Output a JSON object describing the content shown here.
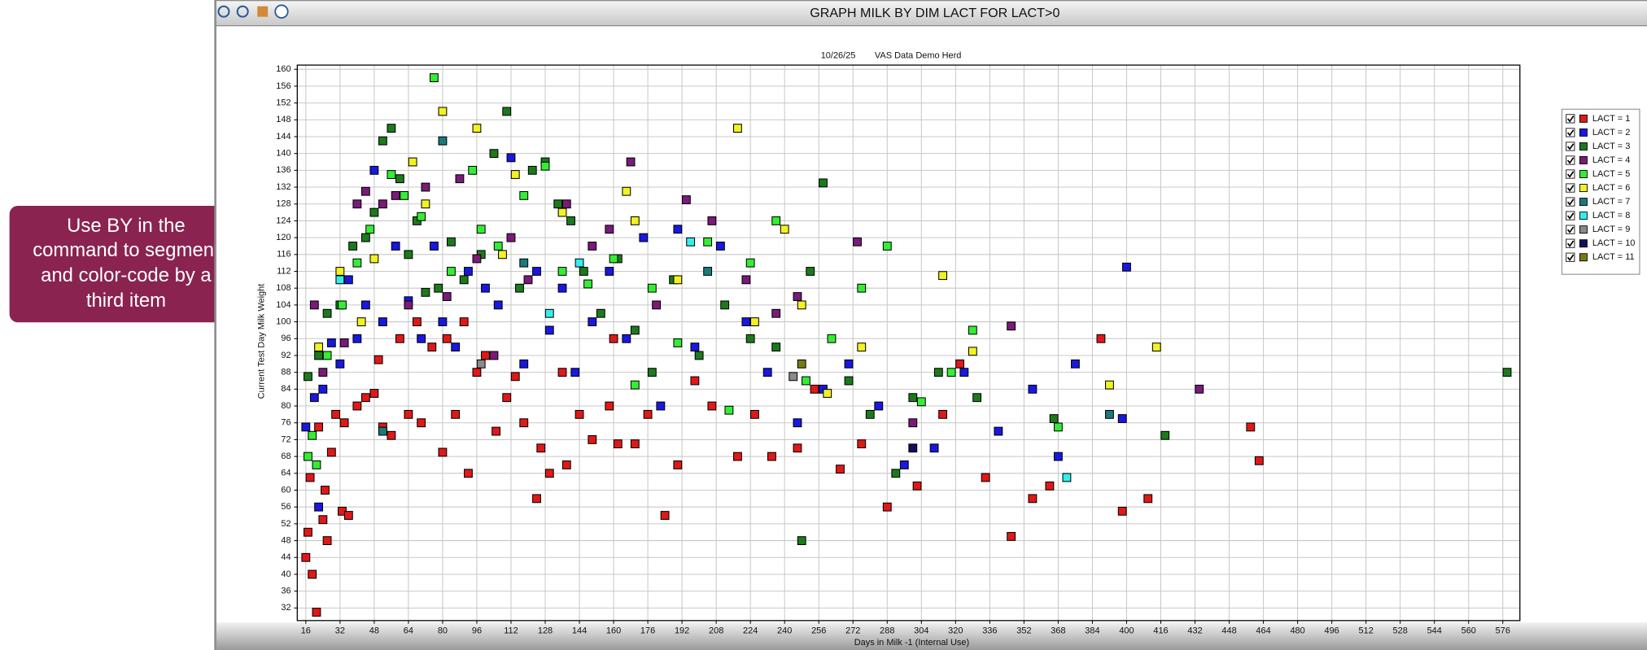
{
  "callout": [
    "Use BY in the",
    "command to segment",
    "and color-code by a",
    "third item"
  ],
  "chart_data": {
    "type": "scatter",
    "title": "GRAPH MILK BY DIM LACT FOR LACT>0",
    "subtitle": [
      "10/26/25",
      "VAS Data Demo Herd"
    ],
    "xlabel": "Days in Milk -1 (Internal Use)",
    "ylabel": "Current Test Day Milk Weight",
    "xlim": [
      12,
      584
    ],
    "ylim": [
      29,
      161
    ],
    "xticks": [
      16,
      32,
      48,
      64,
      80,
      96,
      112,
      128,
      144,
      160,
      176,
      192,
      208,
      224,
      240,
      256,
      272,
      288,
      304,
      320,
      336,
      352,
      368,
      384,
      400,
      416,
      432,
      448,
      464,
      480,
      496,
      512,
      528,
      544,
      560,
      576
    ],
    "yticks": [
      32,
      36,
      40,
      44,
      48,
      52,
      56,
      60,
      64,
      68,
      72,
      76,
      80,
      84,
      88,
      92,
      96,
      100,
      104,
      108,
      112,
      116,
      120,
      124,
      128,
      132,
      136,
      140,
      144,
      148,
      152,
      156,
      160
    ],
    "grid": true,
    "legend": "right",
    "series": [
      {
        "name": "LACT = 1",
        "color": "#e01818",
        "x": [
          16,
          17,
          18,
          19,
          21,
          22,
          24,
          25,
          26,
          28,
          30,
          33,
          34,
          36,
          40,
          44,
          48,
          50,
          52,
          56,
          60,
          64,
          68,
          70,
          75,
          80,
          82,
          86,
          90,
          92,
          96,
          100,
          105,
          110,
          114,
          118,
          124,
          126,
          130,
          136,
          138,
          144,
          150,
          158,
          160,
          162,
          170,
          176,
          184,
          190,
          198,
          206,
          218,
          226,
          234,
          246,
          254,
          266,
          276,
          288,
          302,
          314,
          322,
          334,
          346,
          356,
          364,
          388,
          398,
          410,
          458,
          462
        ],
        "values": [
          44,
          50,
          63,
          40,
          31,
          75,
          53,
          60,
          48,
          69,
          78,
          55,
          76,
          54,
          80,
          82,
          83,
          91,
          75,
          73,
          96,
          78,
          100,
          76,
          94,
          69,
          96,
          78,
          100,
          64,
          88,
          92,
          74,
          82,
          87,
          76,
          58,
          70,
          64,
          88,
          66,
          78,
          72,
          80,
          96,
          71,
          71,
          78,
          54,
          66,
          86,
          80,
          68,
          78,
          68,
          70,
          84,
          65,
          71,
          56,
          61,
          78,
          90,
          63,
          49,
          58,
          61,
          96,
          55,
          58,
          75,
          67
        ]
      },
      {
        "name": "LACT = 2",
        "color": "#1818e0",
        "x": [
          16,
          20,
          22,
          24,
          28,
          32,
          36,
          40,
          44,
          48,
          52,
          58,
          64,
          70,
          76,
          80,
          86,
          92,
          100,
          106,
          112,
          118,
          124,
          130,
          136,
          142,
          150,
          158,
          166,
          174,
          182,
          190,
          198,
          210,
          222,
          232,
          246,
          258,
          270,
          284,
          296,
          310,
          324,
          340,
          356,
          368,
          376,
          398,
          400
        ],
        "values": [
          75,
          82,
          56,
          84,
          95,
          90,
          110,
          96,
          104,
          136,
          100,
          118,
          105,
          96,
          118,
          100,
          94,
          112,
          108,
          104,
          139,
          90,
          112,
          98,
          108,
          88,
          100,
          112,
          96,
          120,
          80,
          122,
          94,
          118,
          100,
          88,
          76,
          84,
          90,
          80,
          66,
          70,
          88,
          74,
          84,
          68,
          90,
          77,
          113
        ]
      },
      {
        "name": "LACT = 3",
        "color": "#1c7a1c",
        "x": [
          17,
          22,
          26,
          32,
          38,
          44,
          48,
          52,
          56,
          60,
          64,
          68,
          72,
          78,
          84,
          90,
          98,
          104,
          110,
          116,
          122,
          128,
          134,
          140,
          146,
          154,
          162,
          170,
          178,
          188,
          200,
          212,
          224,
          236,
          248,
          252,
          258,
          270,
          280,
          292,
          300,
          312,
          330,
          366,
          418,
          578
        ],
        "values": [
          87,
          92,
          102,
          104,
          118,
          120,
          126,
          143,
          146,
          134,
          116,
          124,
          107,
          108,
          119,
          110,
          116,
          140,
          150,
          108,
          136,
          138,
          128,
          124,
          112,
          102,
          115,
          98,
          88,
          110,
          92,
          104,
          96,
          94,
          48,
          112,
          133,
          86,
          78,
          64,
          82,
          88,
          82,
          77,
          73,
          88
        ]
      },
      {
        "name": "LACT = 4",
        "color": "#7a1a7a",
        "x": [
          20,
          24,
          34,
          40,
          44,
          52,
          58,
          64,
          72,
          82,
          88,
          96,
          104,
          112,
          120,
          138,
          150,
          158,
          168,
          180,
          194,
          206,
          222,
          236,
          246,
          274,
          300,
          346,
          434
        ],
        "values": [
          104,
          88,
          95,
          128,
          131,
          128,
          130,
          104,
          132,
          106,
          134,
          115,
          92,
          120,
          110,
          128,
          118,
          122,
          138,
          104,
          129,
          124,
          110,
          102,
          106,
          119,
          76,
          99,
          84
        ]
      },
      {
        "name": "LACT = 5",
        "color": "#33ee33",
        "x": [
          17,
          19,
          21,
          26,
          33,
          40,
          46,
          56,
          62,
          70,
          76,
          84,
          94,
          98,
          106,
          118,
          128,
          136,
          148,
          160,
          170,
          178,
          190,
          204,
          214,
          224,
          236,
          250,
          262,
          276,
          288,
          304,
          318,
          328,
          368
        ],
        "values": [
          68,
          73,
          66,
          92,
          104,
          114,
          122,
          135,
          130,
          125,
          158,
          112,
          136,
          122,
          118,
          130,
          137,
          112,
          109,
          115,
          85,
          108,
          95,
          119,
          79,
          114,
          124,
          86,
          96,
          108,
          118,
          81,
          88,
          98,
          75
        ]
      },
      {
        "name": "LACT = 6",
        "color": "#f2f222",
        "x": [
          22,
          32,
          42,
          48,
          66,
          72,
          80,
          96,
          108,
          114,
          136,
          166,
          170,
          190,
          218,
          226,
          240,
          248,
          260,
          276,
          314,
          328,
          392,
          414
        ],
        "values": [
          94,
          112,
          100,
          115,
          138,
          128,
          150,
          146,
          116,
          135,
          126,
          131,
          124,
          110,
          146,
          100,
          122,
          104,
          83,
          94,
          111,
          93,
          85,
          94
        ]
      },
      {
        "name": "LACT = 7",
        "color": "#1a7a7a",
        "x": [
          52,
          80,
          118,
          204,
          392
        ],
        "values": [
          74,
          143,
          114,
          112,
          78
        ]
      },
      {
        "name": "LACT = 8",
        "color": "#33eeee",
        "x": [
          32,
          130,
          144,
          196,
          372
        ],
        "values": [
          110,
          102,
          114,
          119,
          63
        ]
      },
      {
        "name": "LACT = 9",
        "color": "#8a8a8a",
        "x": [
          98,
          244
        ],
        "values": [
          90,
          87
        ]
      },
      {
        "name": "LACT = 10",
        "color": "#10105e",
        "x": [
          300
        ],
        "values": [
          70
        ]
      },
      {
        "name": "LACT = 11",
        "color": "#7a7a12",
        "x": [
          248
        ],
        "values": [
          90
        ]
      }
    ]
  }
}
